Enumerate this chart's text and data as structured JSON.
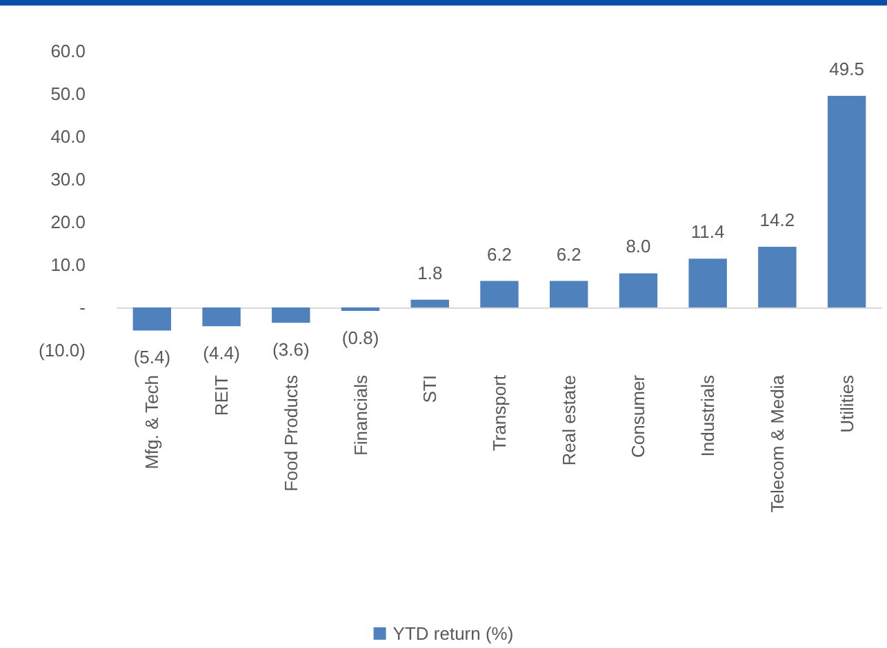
{
  "chart_data": {
    "type": "bar",
    "categories": [
      "Mfg. & Tech",
      "REIT",
      "Food Products",
      "Financials",
      "STI",
      "Transport",
      "Real estate",
      "Consumer",
      "Industrials",
      "Telecom & Media",
      "Utilities"
    ],
    "series": [
      {
        "name": "YTD return (%)",
        "color": "#4f81bd",
        "values": [
          -5.4,
          -4.4,
          -3.6,
          -0.8,
          1.8,
          6.2,
          6.2,
          8.0,
          11.4,
          14.2,
          49.5
        ],
        "value_labels": [
          "(5.4)",
          "(4.4)",
          "(3.6)",
          "(0.8)",
          "1.8",
          "6.2",
          "6.2",
          "8.0",
          "11.4",
          "14.2",
          "49.5"
        ]
      }
    ],
    "ylim": [
      -10,
      60
    ],
    "yticks": [
      {
        "value": -10,
        "label": "(10.0)"
      },
      {
        "value": 0,
        "label": "-"
      },
      {
        "value": 10,
        "label": "10.0"
      },
      {
        "value": 20,
        "label": "20.0"
      },
      {
        "value": 30,
        "label": "30.0"
      },
      {
        "value": 40,
        "label": "40.0"
      },
      {
        "value": 50,
        "label": "50.0"
      },
      {
        "value": 60,
        "label": "60.0"
      }
    ],
    "legend": "bottom"
  }
}
